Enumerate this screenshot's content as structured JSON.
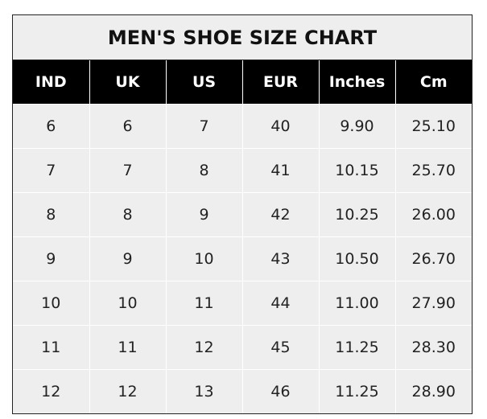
{
  "title": "MEN'S SHOE SIZE CHART",
  "headers": [
    "IND",
    "UK",
    "US",
    "EUR",
    "Inches",
    "Cm"
  ],
  "rows": [
    [
      "6",
      "6",
      "7",
      "40",
      "9.90",
      "25.10"
    ],
    [
      "7",
      "7",
      "8",
      "41",
      "10.15",
      "25.70"
    ],
    [
      "8",
      "8",
      "9",
      "42",
      "10.25",
      "26.00"
    ],
    [
      "9",
      "9",
      "10",
      "43",
      "10.50",
      "26.70"
    ],
    [
      "10",
      "10",
      "11",
      "44",
      "11.00",
      "27.90"
    ],
    [
      "11",
      "11",
      "12",
      "45",
      "11.25",
      "28.30"
    ],
    [
      "12",
      "12",
      "13",
      "46",
      "11.25",
      "28.90"
    ]
  ]
}
